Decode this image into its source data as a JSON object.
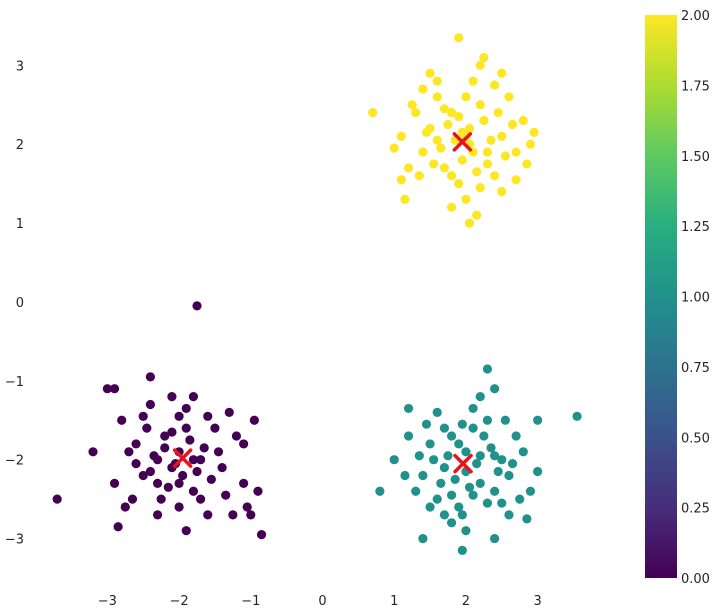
{
  "chart_data": {
    "type": "scatter",
    "title": "",
    "xlabel": "",
    "ylabel": "",
    "xlim": [
      -3.8,
      3.8
    ],
    "ylim": [
      -3.5,
      3.6
    ],
    "grid": false,
    "xticks": [
      {
        "value": -3,
        "label": "−3"
      },
      {
        "value": -2,
        "label": "−2"
      },
      {
        "value": -1,
        "label": "−1"
      },
      {
        "value": 0,
        "label": "0"
      },
      {
        "value": 1,
        "label": "1"
      },
      {
        "value": 2,
        "label": "2"
      },
      {
        "value": 3,
        "label": "3"
      }
    ],
    "yticks": [
      {
        "value": 3,
        "label": "3"
      },
      {
        "value": 2,
        "label": "2"
      },
      {
        "value": 1,
        "label": "1"
      },
      {
        "value": 0,
        "label": "0"
      },
      {
        "value": -1,
        "label": "−1"
      },
      {
        "value": -2,
        "label": "−2"
      },
      {
        "value": -3,
        "label": "−3"
      }
    ],
    "colorbar": {
      "min": 0.0,
      "max": 2.0,
      "colormap": "viridis",
      "ticks": [
        {
          "value": 2.0,
          "label": "2.00"
        },
        {
          "value": 1.75,
          "label": "1.75"
        },
        {
          "value": 1.5,
          "label": "1.50"
        },
        {
          "value": 1.25,
          "label": "1.25"
        },
        {
          "value": 1.0,
          "label": "1.00"
        },
        {
          "value": 0.75,
          "label": "0.75"
        },
        {
          "value": 0.5,
          "label": "0.50"
        },
        {
          "value": 0.25,
          "label": "0.25"
        },
        {
          "value": 0.0,
          "label": "0.00"
        }
      ]
    },
    "series": [
      {
        "cluster": 0,
        "color": "#440154",
        "points": [
          [
            -2.0,
            -1.9
          ],
          [
            -2.4,
            -1.3
          ],
          [
            -2.1,
            -2.1
          ],
          [
            -1.9,
            -1.6
          ],
          [
            -2.3,
            -2.3
          ],
          [
            -1.7,
            -2.0
          ],
          [
            -2.2,
            -1.7
          ],
          [
            -1.8,
            -2.4
          ],
          [
            -2.6,
            -1.8
          ],
          [
            -1.5,
            -1.6
          ],
          [
            -2.0,
            -2.6
          ],
          [
            -2.5,
            -2.2
          ],
          [
            -1.4,
            -2.1
          ],
          [
            -2.8,
            -1.5
          ],
          [
            -1.2,
            -1.7
          ],
          [
            -2.1,
            -1.2
          ],
          [
            -1.6,
            -2.7
          ],
          [
            -2.9,
            -2.3
          ],
          [
            -1.1,
            -2.3
          ],
          [
            -2.3,
            -2.7
          ],
          [
            -1.8,
            -1.2
          ],
          [
            -2.7,
            -1.9
          ],
          [
            -1.3,
            -1.4
          ],
          [
            -1.9,
            -2.9
          ],
          [
            -2.0,
            -1.45
          ],
          [
            -2.35,
            -1.95
          ],
          [
            -1.65,
            -1.85
          ],
          [
            -2.15,
            -2.35
          ],
          [
            -1.85,
            -1.75
          ],
          [
            -2.45,
            -1.6
          ],
          [
            -1.55,
            -2.25
          ],
          [
            -2.05,
            -2.05
          ],
          [
            -2.3,
            -2.0
          ],
          [
            -1.75,
            -2.15
          ],
          [
            -2.2,
            -1.85
          ],
          [
            -1.95,
            -2.2
          ],
          [
            -2.6,
            -2.05
          ],
          [
            -1.45,
            -1.9
          ],
          [
            -2.1,
            -1.65
          ],
          [
            -1.7,
            -2.5
          ],
          [
            -2.5,
            -1.45
          ],
          [
            -1.35,
            -2.45
          ],
          [
            -2.25,
            -2.5
          ],
          [
            -1.9,
            -1.35
          ],
          [
            -1.6,
            -1.45
          ],
          [
            -2.75,
            -2.6
          ],
          [
            -1.25,
            -2.7
          ],
          [
            -2.4,
            -2.15
          ],
          [
            -1.8,
            -2.0
          ],
          [
            -2.0,
            -2.3
          ],
          [
            -3.0,
            -1.1
          ],
          [
            -0.95,
            -1.5
          ],
          [
            -0.9,
            -2.4
          ],
          [
            -3.2,
            -1.9
          ],
          [
            -2.9,
            -1.1
          ],
          [
            -3.7,
            -2.5
          ],
          [
            -1.75,
            -0.05
          ],
          [
            -0.85,
            -2.95
          ],
          [
            -2.4,
            -0.95
          ],
          [
            -1.0,
            -2.7
          ],
          [
            -1.05,
            -2.6
          ],
          [
            -1.1,
            -1.8
          ],
          [
            -2.65,
            -2.5
          ],
          [
            -2.85,
            -2.85
          ]
        ]
      },
      {
        "cluster": 1,
        "color": "#21918c",
        "points": [
          [
            2.0,
            -1.9
          ],
          [
            2.3,
            -1.5
          ],
          [
            1.7,
            -2.1
          ],
          [
            2.2,
            -2.3
          ],
          [
            1.8,
            -1.7
          ],
          [
            2.5,
            -2.0
          ],
          [
            1.6,
            -2.5
          ],
          [
            2.1,
            -1.6
          ],
          [
            2.4,
            -2.4
          ],
          [
            1.5,
            -1.8
          ],
          [
            2.7,
            -1.7
          ],
          [
            1.9,
            -2.6
          ],
          [
            2.6,
            -2.2
          ],
          [
            1.4,
            -2.2
          ],
          [
            2.2,
            -1.2
          ],
          [
            1.8,
            -2.8
          ],
          [
            2.8,
            -1.9
          ],
          [
            1.2,
            -1.7
          ],
          [
            2.0,
            -2.9
          ],
          [
            2.9,
            -2.4
          ],
          [
            1.3,
            -2.4
          ],
          [
            2.4,
            -1.1
          ],
          [
            1.6,
            -1.4
          ],
          [
            2.6,
            -2.7
          ],
          [
            1.95,
            -1.55
          ],
          [
            2.15,
            -2.05
          ],
          [
            1.85,
            -2.25
          ],
          [
            2.35,
            -1.85
          ],
          [
            1.75,
            -1.95
          ],
          [
            2.05,
            -2.35
          ],
          [
            2.25,
            -1.7
          ],
          [
            1.65,
            -2.3
          ],
          [
            2.45,
            -2.15
          ],
          [
            1.9,
            -1.8
          ],
          [
            2.1,
            -2.45
          ],
          [
            1.7,
            -1.6
          ],
          [
            2.55,
            -1.5
          ],
          [
            1.5,
            -2.6
          ],
          [
            2.3,
            -2.55
          ],
          [
            2.0,
            -2.15
          ],
          [
            1.55,
            -2.0
          ],
          [
            2.4,
            -1.95
          ],
          [
            1.8,
            -2.45
          ],
          [
            2.2,
            -1.95
          ],
          [
            1.95,
            -2.7
          ],
          [
            2.65,
            -2.05
          ],
          [
            1.35,
            -1.95
          ],
          [
            2.75,
            -2.5
          ],
          [
            1.45,
            -1.55
          ],
          [
            2.1,
            -1.35
          ],
          [
            3.55,
            -1.45
          ],
          [
            3.0,
            -1.5
          ],
          [
            2.3,
            -0.85
          ],
          [
            0.8,
            -2.4
          ],
          [
            1.95,
            -3.15
          ],
          [
            2.4,
            -3.0
          ],
          [
            1.4,
            -3.0
          ],
          [
            3.0,
            -2.15
          ],
          [
            1.2,
            -1.35
          ],
          [
            1.0,
            -2.0
          ],
          [
            1.7,
            -2.7
          ],
          [
            2.85,
            -2.75
          ],
          [
            1.15,
            -2.2
          ],
          [
            2.5,
            -2.55
          ]
        ]
      },
      {
        "cluster": 2,
        "color": "#fde725",
        "points": [
          [
            2.0,
            2.1
          ],
          [
            1.8,
            2.4
          ],
          [
            2.3,
            1.9
          ],
          [
            1.7,
            1.7
          ],
          [
            2.2,
            2.5
          ],
          [
            1.5,
            2.2
          ],
          [
            2.5,
            2.1
          ],
          [
            1.9,
            1.5
          ],
          [
            2.1,
            2.8
          ],
          [
            1.4,
            1.9
          ],
          [
            2.6,
            2.6
          ],
          [
            1.6,
            2.6
          ],
          [
            2.4,
            1.6
          ],
          [
            1.3,
            2.4
          ],
          [
            2.7,
            1.9
          ],
          [
            1.8,
            1.2
          ],
          [
            2.2,
            3.0
          ],
          [
            1.2,
            1.7
          ],
          [
            2.8,
            2.3
          ],
          [
            2.0,
            1.3
          ],
          [
            1.5,
            2.9
          ],
          [
            2.5,
            1.4
          ],
          [
            1.1,
            2.1
          ],
          [
            2.9,
            2.0
          ],
          [
            2.05,
            2.2
          ],
          [
            1.85,
            2.05
          ],
          [
            2.25,
            2.3
          ],
          [
            1.95,
            1.8
          ],
          [
            2.15,
            1.65
          ],
          [
            1.75,
            2.25
          ],
          [
            2.35,
            2.05
          ],
          [
            1.65,
            1.95
          ],
          [
            2.45,
            2.4
          ],
          [
            1.9,
            2.35
          ],
          [
            2.1,
            1.9
          ],
          [
            1.55,
            1.75
          ],
          [
            2.3,
            1.75
          ],
          [
            1.7,
            2.45
          ],
          [
            2.55,
            1.85
          ],
          [
            1.45,
            2.15
          ],
          [
            2.0,
            2.6
          ],
          [
            1.8,
            1.6
          ],
          [
            2.4,
            2.75
          ],
          [
            1.6,
            2.05
          ],
          [
            2.2,
            1.45
          ],
          [
            1.35,
            1.6
          ],
          [
            2.65,
            2.25
          ],
          [
            1.25,
            2.5
          ],
          [
            2.05,
            2.0
          ],
          [
            1.95,
            2.15
          ],
          [
            1.9,
            3.35
          ],
          [
            2.25,
            3.1
          ],
          [
            0.7,
            2.4
          ],
          [
            1.0,
            1.95
          ],
          [
            2.05,
            1.0
          ],
          [
            2.15,
            1.1
          ],
          [
            2.95,
            2.15
          ],
          [
            2.85,
            1.75
          ],
          [
            1.15,
            1.3
          ],
          [
            2.7,
            1.55
          ],
          [
            1.4,
            2.7
          ],
          [
            1.6,
            2.8
          ],
          [
            2.5,
            2.9
          ],
          [
            1.1,
            1.55
          ]
        ]
      }
    ],
    "centroids": {
      "color": "#e8141b",
      "marker": "x",
      "points": [
        [
          -1.95,
          -1.98
        ],
        [
          1.96,
          -2.05
        ],
        [
          1.95,
          2.03
        ]
      ]
    }
  }
}
